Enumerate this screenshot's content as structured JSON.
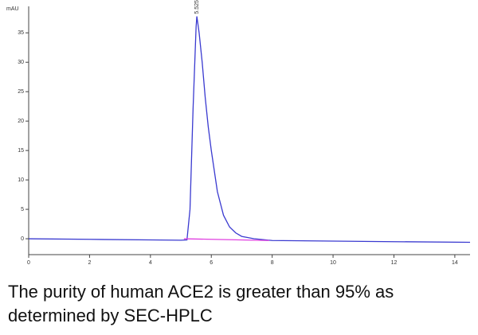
{
  "chart_data": {
    "type": "line",
    "ylabel": "mAU",
    "xlim": [
      0,
      14.5
    ],
    "ylim": [
      -2.7,
      39.5
    ],
    "xticks": [
      0,
      2,
      4,
      6,
      8,
      10,
      12,
      14
    ],
    "yticks": [
      0,
      5,
      10,
      15,
      20,
      25,
      30,
      35
    ],
    "series": [
      {
        "color": "#3a3ad0",
        "x": [
          0,
          2,
          4,
          5.0,
          5.2,
          5.3,
          5.4,
          5.5,
          5.525,
          5.6,
          5.7,
          5.8,
          5.9,
          6.0,
          6.2,
          6.4,
          6.6,
          6.8,
          7.0,
          7.4,
          8,
          10,
          12,
          14.5
        ],
        "values": [
          0,
          -0.1,
          -0.2,
          -0.25,
          -0.2,
          5,
          22,
          36,
          37.8,
          35,
          30,
          24,
          19,
          15,
          8,
          4,
          2,
          1,
          0.4,
          0,
          -0.3,
          -0.4,
          -0.5,
          -0.6
        ]
      },
      {
        "color": "#e040e0",
        "x": [
          5.1,
          7.9
        ],
        "values": [
          0,
          -0.3
        ]
      }
    ],
    "annotations": [
      {
        "text": "5.525",
        "x": 5.525,
        "y": 37.8
      }
    ],
    "caption": [
      "The purity of human ACE2 is greater than 95% as",
      "determined by SEC-HPLC"
    ]
  }
}
